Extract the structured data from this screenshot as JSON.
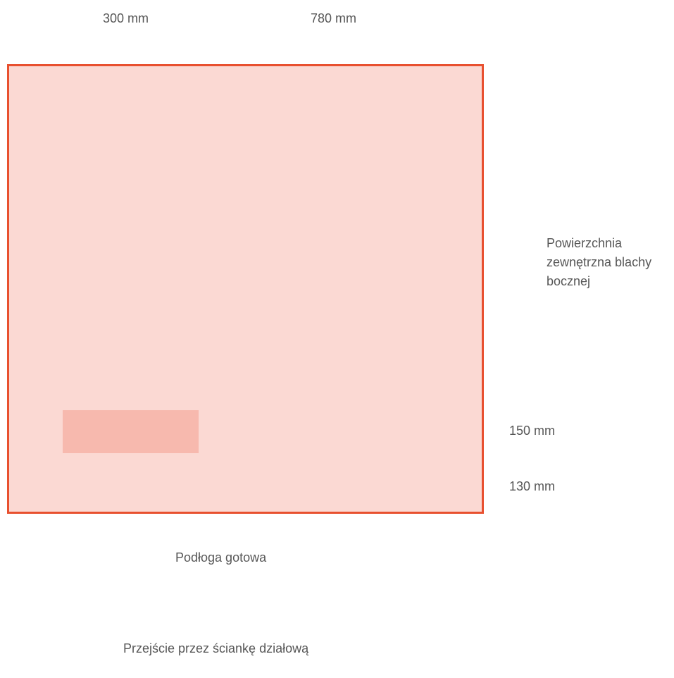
{
  "dimensions": {
    "width_left": "300 mm",
    "width_right": "780 mm",
    "height_upper": "150 mm",
    "height_lower": "130 mm"
  },
  "labels": {
    "outer_surface_line1": "Powierzchnia",
    "outer_surface_line2": "zewnętrzna blachy",
    "outer_surface_line3": "bocznej",
    "finished_floor": "Podłoga gotowa",
    "partition_passage": "Przejście przez ściankę działową"
  },
  "colors": {
    "panel_fill": "#fbd9d3",
    "panel_border": "#e8502f",
    "opening_fill": "#f7b9ae",
    "text": "#575757"
  }
}
